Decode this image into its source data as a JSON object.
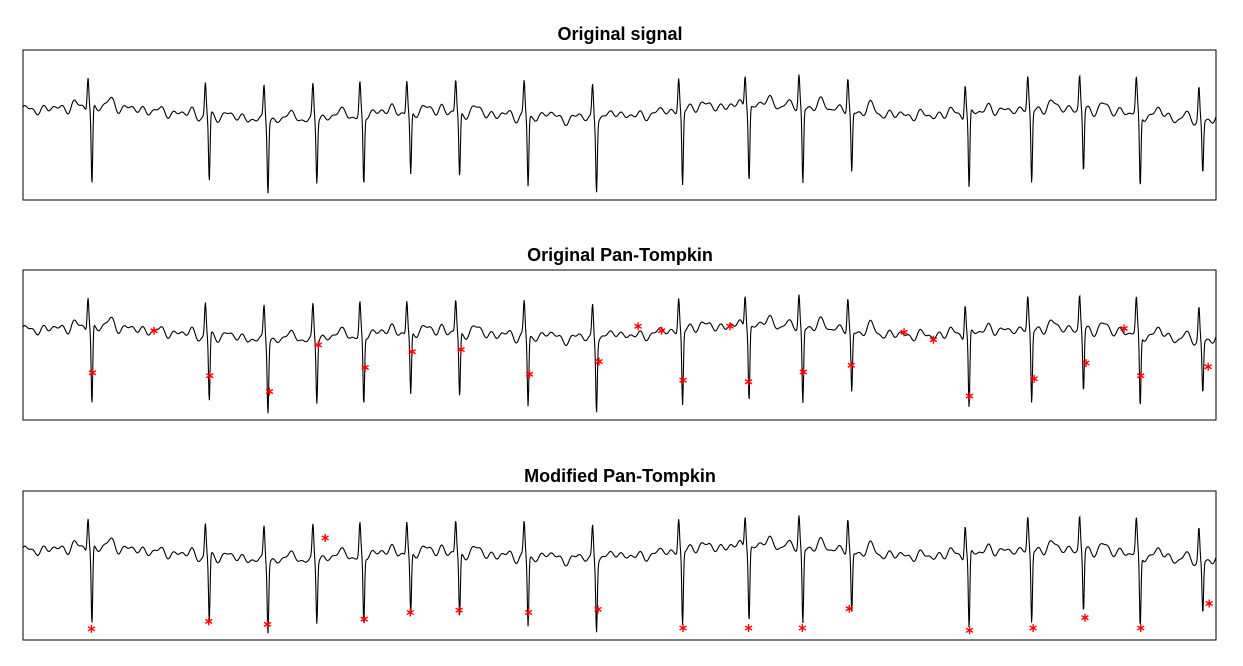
{
  "chart_data": [
    {
      "type": "line",
      "title": "Original signal",
      "beats": [
        0.7,
        1.9,
        2.5,
        3.0,
        3.48,
        3.96,
        4.46,
        5.16,
        5.86,
        6.74,
        7.42,
        7.97,
        8.47,
        9.67,
        10.31,
        10.84,
        11.42,
        12.06
      ],
      "markers": []
    },
    {
      "type": "line",
      "title": "Original Pan-Tompkin",
      "beats": [
        0.7,
        1.9,
        2.5,
        3.0,
        3.48,
        3.96,
        4.46,
        5.16,
        5.86,
        6.74,
        7.42,
        7.97,
        8.47,
        9.67,
        10.31,
        10.84,
        11.42,
        12.06
      ],
      "markers": [
        {
          "x": 0.71,
          "y": -0.52
        },
        {
          "x": 1.34,
          "y": 0.04
        },
        {
          "x": 1.91,
          "y": -0.56
        },
        {
          "x": 2.52,
          "y": -0.77
        },
        {
          "x": 3.02,
          "y": -0.15
        },
        {
          "x": 3.5,
          "y": -0.45
        },
        {
          "x": 3.98,
          "y": -0.24
        },
        {
          "x": 4.48,
          "y": -0.21
        },
        {
          "x": 5.18,
          "y": -0.54
        },
        {
          "x": 5.89,
          "y": -0.37
        },
        {
          "x": 6.29,
          "y": 0.1
        },
        {
          "x": 6.53,
          "y": 0.04
        },
        {
          "x": 6.75,
          "y": -0.62
        },
        {
          "x": 7.23,
          "y": 0.1
        },
        {
          "x": 7.42,
          "y": -0.64
        },
        {
          "x": 7.98,
          "y": -0.51
        },
        {
          "x": 8.47,
          "y": -0.42
        },
        {
          "x": 9.01,
          "y": 0.02
        },
        {
          "x": 9.31,
          "y": -0.08
        },
        {
          "x": 9.68,
          "y": -0.83
        },
        {
          "x": 10.34,
          "y": -0.6
        },
        {
          "x": 10.87,
          "y": -0.39
        },
        {
          "x": 11.26,
          "y": 0.07
        },
        {
          "x": 11.43,
          "y": -0.56
        },
        {
          "x": 12.12,
          "y": -0.44
        }
      ]
    },
    {
      "type": "line",
      "title": "Modified Pan-Tompkin",
      "beats": [
        0.7,
        1.9,
        2.5,
        3.0,
        3.48,
        3.96,
        4.46,
        5.16,
        5.86,
        6.74,
        7.42,
        7.97,
        8.47,
        9.67,
        10.31,
        10.84,
        11.42,
        12.06
      ],
      "markers": [
        {
          "x": 0.7,
          "y": -1.0
        },
        {
          "x": 1.9,
          "y": -0.9
        },
        {
          "x": 2.5,
          "y": -0.94
        },
        {
          "x": 3.09,
          "y": 0.22
        },
        {
          "x": 3.49,
          "y": -0.87
        },
        {
          "x": 3.96,
          "y": -0.78
        },
        {
          "x": 4.46,
          "y": -0.75
        },
        {
          "x": 5.17,
          "y": -0.78
        },
        {
          "x": 5.88,
          "y": -0.74
        },
        {
          "x": 6.75,
          "y": -0.99
        },
        {
          "x": 7.42,
          "y": -0.99
        },
        {
          "x": 7.97,
          "y": -0.99
        },
        {
          "x": 8.45,
          "y": -0.73
        },
        {
          "x": 9.68,
          "y": -1.02
        },
        {
          "x": 10.33,
          "y": -0.99
        },
        {
          "x": 10.86,
          "y": -0.85
        },
        {
          "x": 11.43,
          "y": -0.99
        },
        {
          "x": 12.13,
          "y": -0.66
        }
      ]
    }
  ],
  "colors": {
    "trace": "#000000",
    "marker": "#ff0000"
  }
}
